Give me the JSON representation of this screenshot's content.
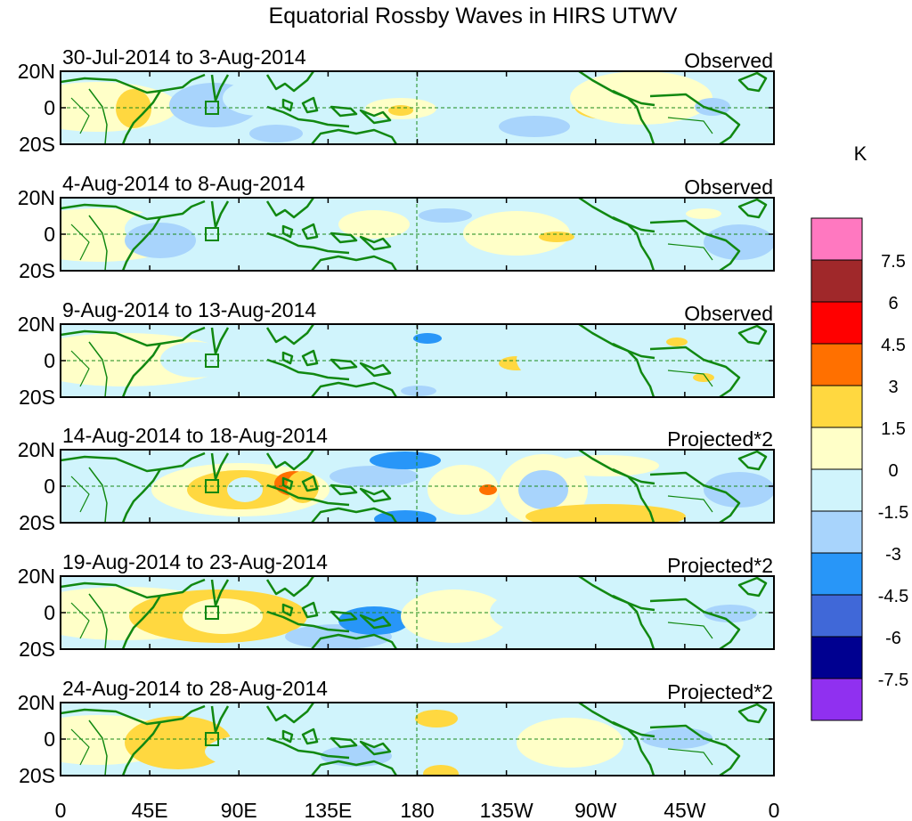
{
  "title": "Equatorial Rossby Waves in HIRS UTWV",
  "lat_labels": [
    "20N",
    "0",
    "20S"
  ],
  "lon_labels": [
    "0",
    "45E",
    "90E",
    "135E",
    "180",
    "135W",
    "90W",
    "45W",
    "0"
  ],
  "colorbar": {
    "unit": "K",
    "ticks": [
      "7.5",
      "6",
      "4.5",
      "3",
      "1.5",
      "0",
      "-1.5",
      "-3",
      "-4.5",
      "-6",
      "-7.5"
    ],
    "colors": [
      "#ff78c0",
      "#a0282a",
      "#ff0000",
      "#ff7000",
      "#ffd840",
      "#ffffc8",
      "#d0f4fc",
      "#a8d4fc",
      "#2896f8",
      "#4068d8",
      "#000090",
      "#9030f0"
    ]
  },
  "palette": {
    "coast": "#118811",
    "equator": "#1a8a1a"
  },
  "panels": [
    {
      "date_range": "30-Jul-2014 to 3-Aug-2014",
      "type": "Observed"
    },
    {
      "date_range": "4-Aug-2014 to 8-Aug-2014",
      "type": "Observed"
    },
    {
      "date_range": "9-Aug-2014 to 13-Aug-2014",
      "type": "Observed"
    },
    {
      "date_range": "14-Aug-2014 to 18-Aug-2014",
      "type": "Projected*2"
    },
    {
      "date_range": "19-Aug-2014 to 23-Aug-2014",
      "type": "Projected*2"
    },
    {
      "date_range": "24-Aug-2014 to 28-Aug-2014",
      "type": "Projected*2"
    }
  ]
}
